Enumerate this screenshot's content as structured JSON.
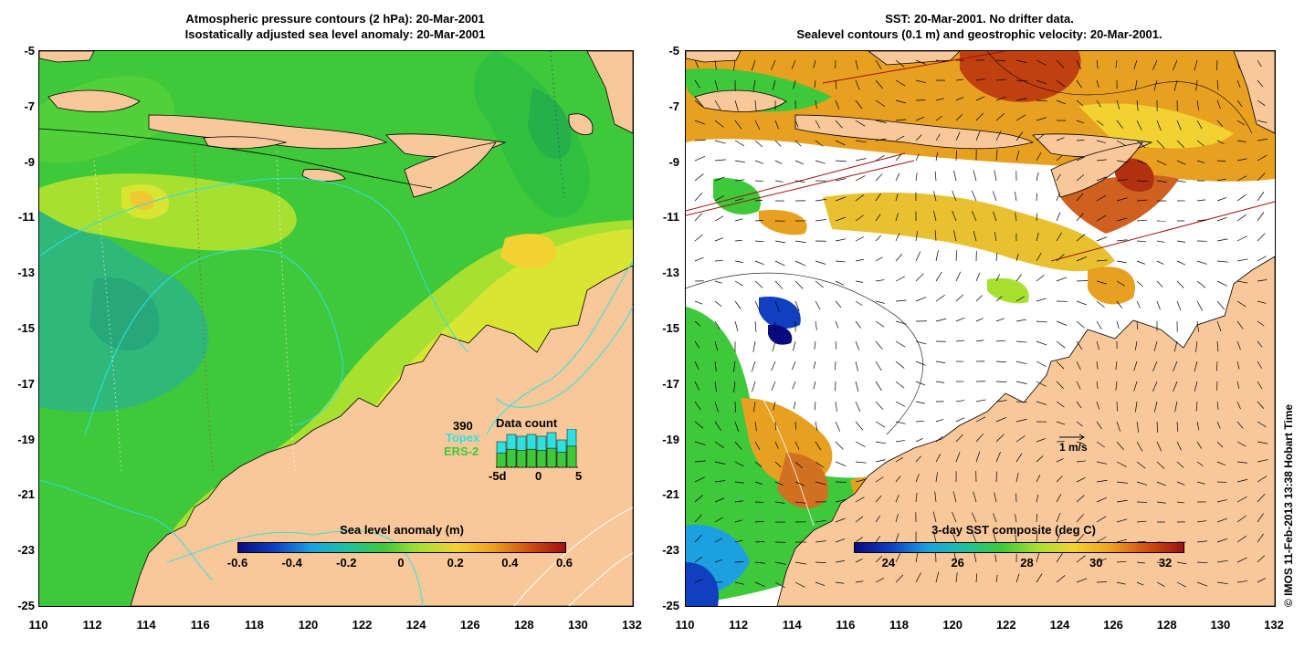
{
  "left_panel": {
    "title_line1": "Atmospheric pressure contours (2 hPa): 20-Mar-2001",
    "title_line2": "Isostatically adjusted sea level anomaly: 20-Mar-2001",
    "colorbar_label": "Sea level anomaly (m)",
    "colorbar_ticks": [
      "-0.6",
      "-0.4",
      "-0.2",
      "0",
      "0.2",
      "0.4",
      "0.6"
    ],
    "colorbar_range": [
      -0.6,
      0.6
    ],
    "data_count": {
      "title": "Data count",
      "count": "390",
      "topex_label": "Topex",
      "ers2_label": "ERS-2",
      "ticks": [
        "-5d",
        "0",
        "5"
      ]
    }
  },
  "right_panel": {
    "title_line1": "SST: 20-Mar-2001. No drifter data.",
    "title_line2": "Sealevel contours (0.1 m) and geostrophic velocity: 20-Mar-2001.",
    "colorbar_label": "3-day SST composite (deg C)",
    "colorbar_ticks": [
      "24",
      "26",
      "28",
      "30",
      "32"
    ],
    "colorbar_range": [
      23,
      32.5
    ],
    "velocity_scale_label": "1 m/s"
  },
  "axes": {
    "y_ticks": [
      "-5",
      "-7",
      "-9",
      "-11",
      "-13",
      "-15",
      "-17",
      "-19",
      "-21",
      "-23",
      "-25"
    ],
    "x_ticks": [
      "110",
      "112",
      "114",
      "116",
      "118",
      "120",
      "122",
      "124",
      "126",
      "128",
      "130",
      "132"
    ],
    "lat_range": [
      -25,
      -5
    ],
    "lon_range": [
      110,
      132
    ]
  },
  "credit": "© IMOS 11-Feb-2013 13:38 Hobart Time",
  "colors": {
    "land": "#f9c89a",
    "ocean_green": "#3ec83a",
    "ocean_yellow_green": "#a8e032",
    "ocean_teal": "#2fb87a",
    "contour_cyan": "#2ee0e0",
    "no_data": "#ffffff"
  }
}
